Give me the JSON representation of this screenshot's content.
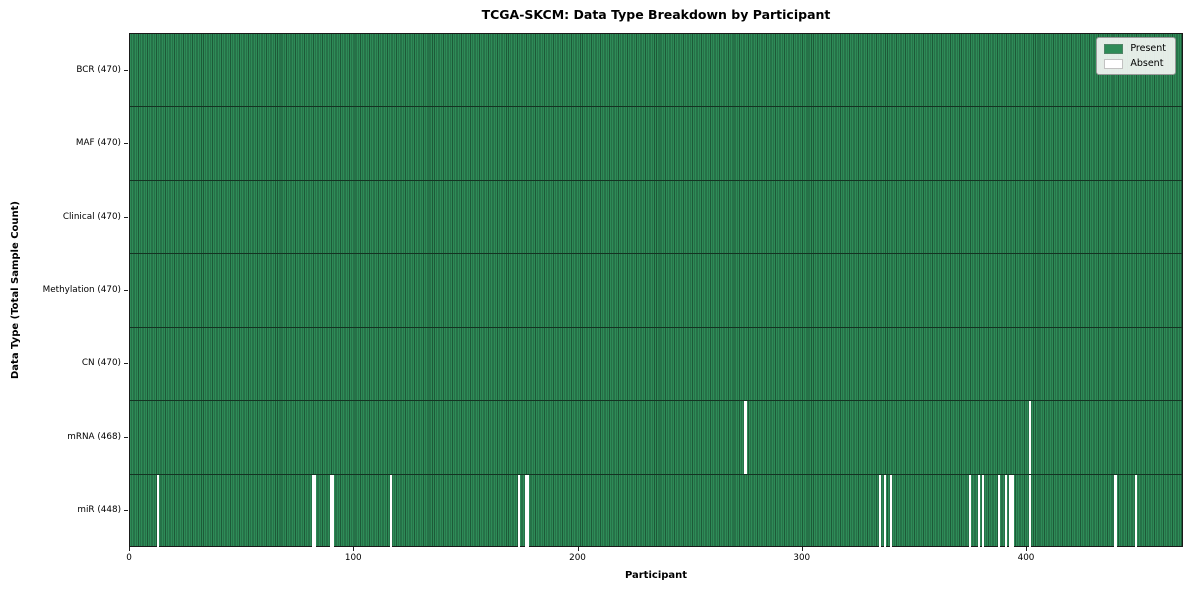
{
  "chart_data": {
    "type": "heatmap",
    "title": "TCGA-SKCM: Data Type Breakdown by Participant",
    "xlabel": "Participant",
    "ylabel": "Data Type (Total Sample Count)",
    "x_ticks": [
      0,
      100,
      200,
      300,
      400
    ],
    "x_range": [
      0,
      470
    ],
    "n_participants": 470,
    "grid": "row-dividers",
    "colors": {
      "present": "#2e8b57",
      "present_cell_edge": "#1d5a38",
      "absent": "#ffffff",
      "row_divider": "#143322",
      "plot_border": "#1a1a1a"
    },
    "legend": {
      "position": "upper-right",
      "items": [
        {
          "label": "Present",
          "color": "#2e8b57"
        },
        {
          "label": "Absent",
          "color": "#ffffff"
        }
      ]
    },
    "rows": [
      {
        "name": "BCR",
        "label": "BCR (470)",
        "total_samples": 470,
        "absent_participants": []
      },
      {
        "name": "MAF",
        "label": "MAF (470)",
        "total_samples": 470,
        "absent_participants": []
      },
      {
        "name": "Clinical",
        "label": "Clinical (470)",
        "total_samples": 470,
        "absent_participants": []
      },
      {
        "name": "Methylation",
        "label": "Methylation (470)",
        "total_samples": 470,
        "absent_participants": []
      },
      {
        "name": "CN",
        "label": "CN (470)",
        "total_samples": 470,
        "absent_participants": []
      },
      {
        "name": "mRNA",
        "label": "mRNA (468)",
        "total_samples": 468,
        "absent_participants": [
          274,
          401
        ]
      },
      {
        "name": "miR",
        "label": "miR (448)",
        "total_samples": 448,
        "absent_participants": [
          12,
          81,
          82,
          89,
          90,
          116,
          173,
          176,
          177,
          334,
          336,
          339,
          374,
          378,
          380,
          387,
          390,
          392,
          393,
          401,
          439,
          448
        ]
      }
    ]
  }
}
